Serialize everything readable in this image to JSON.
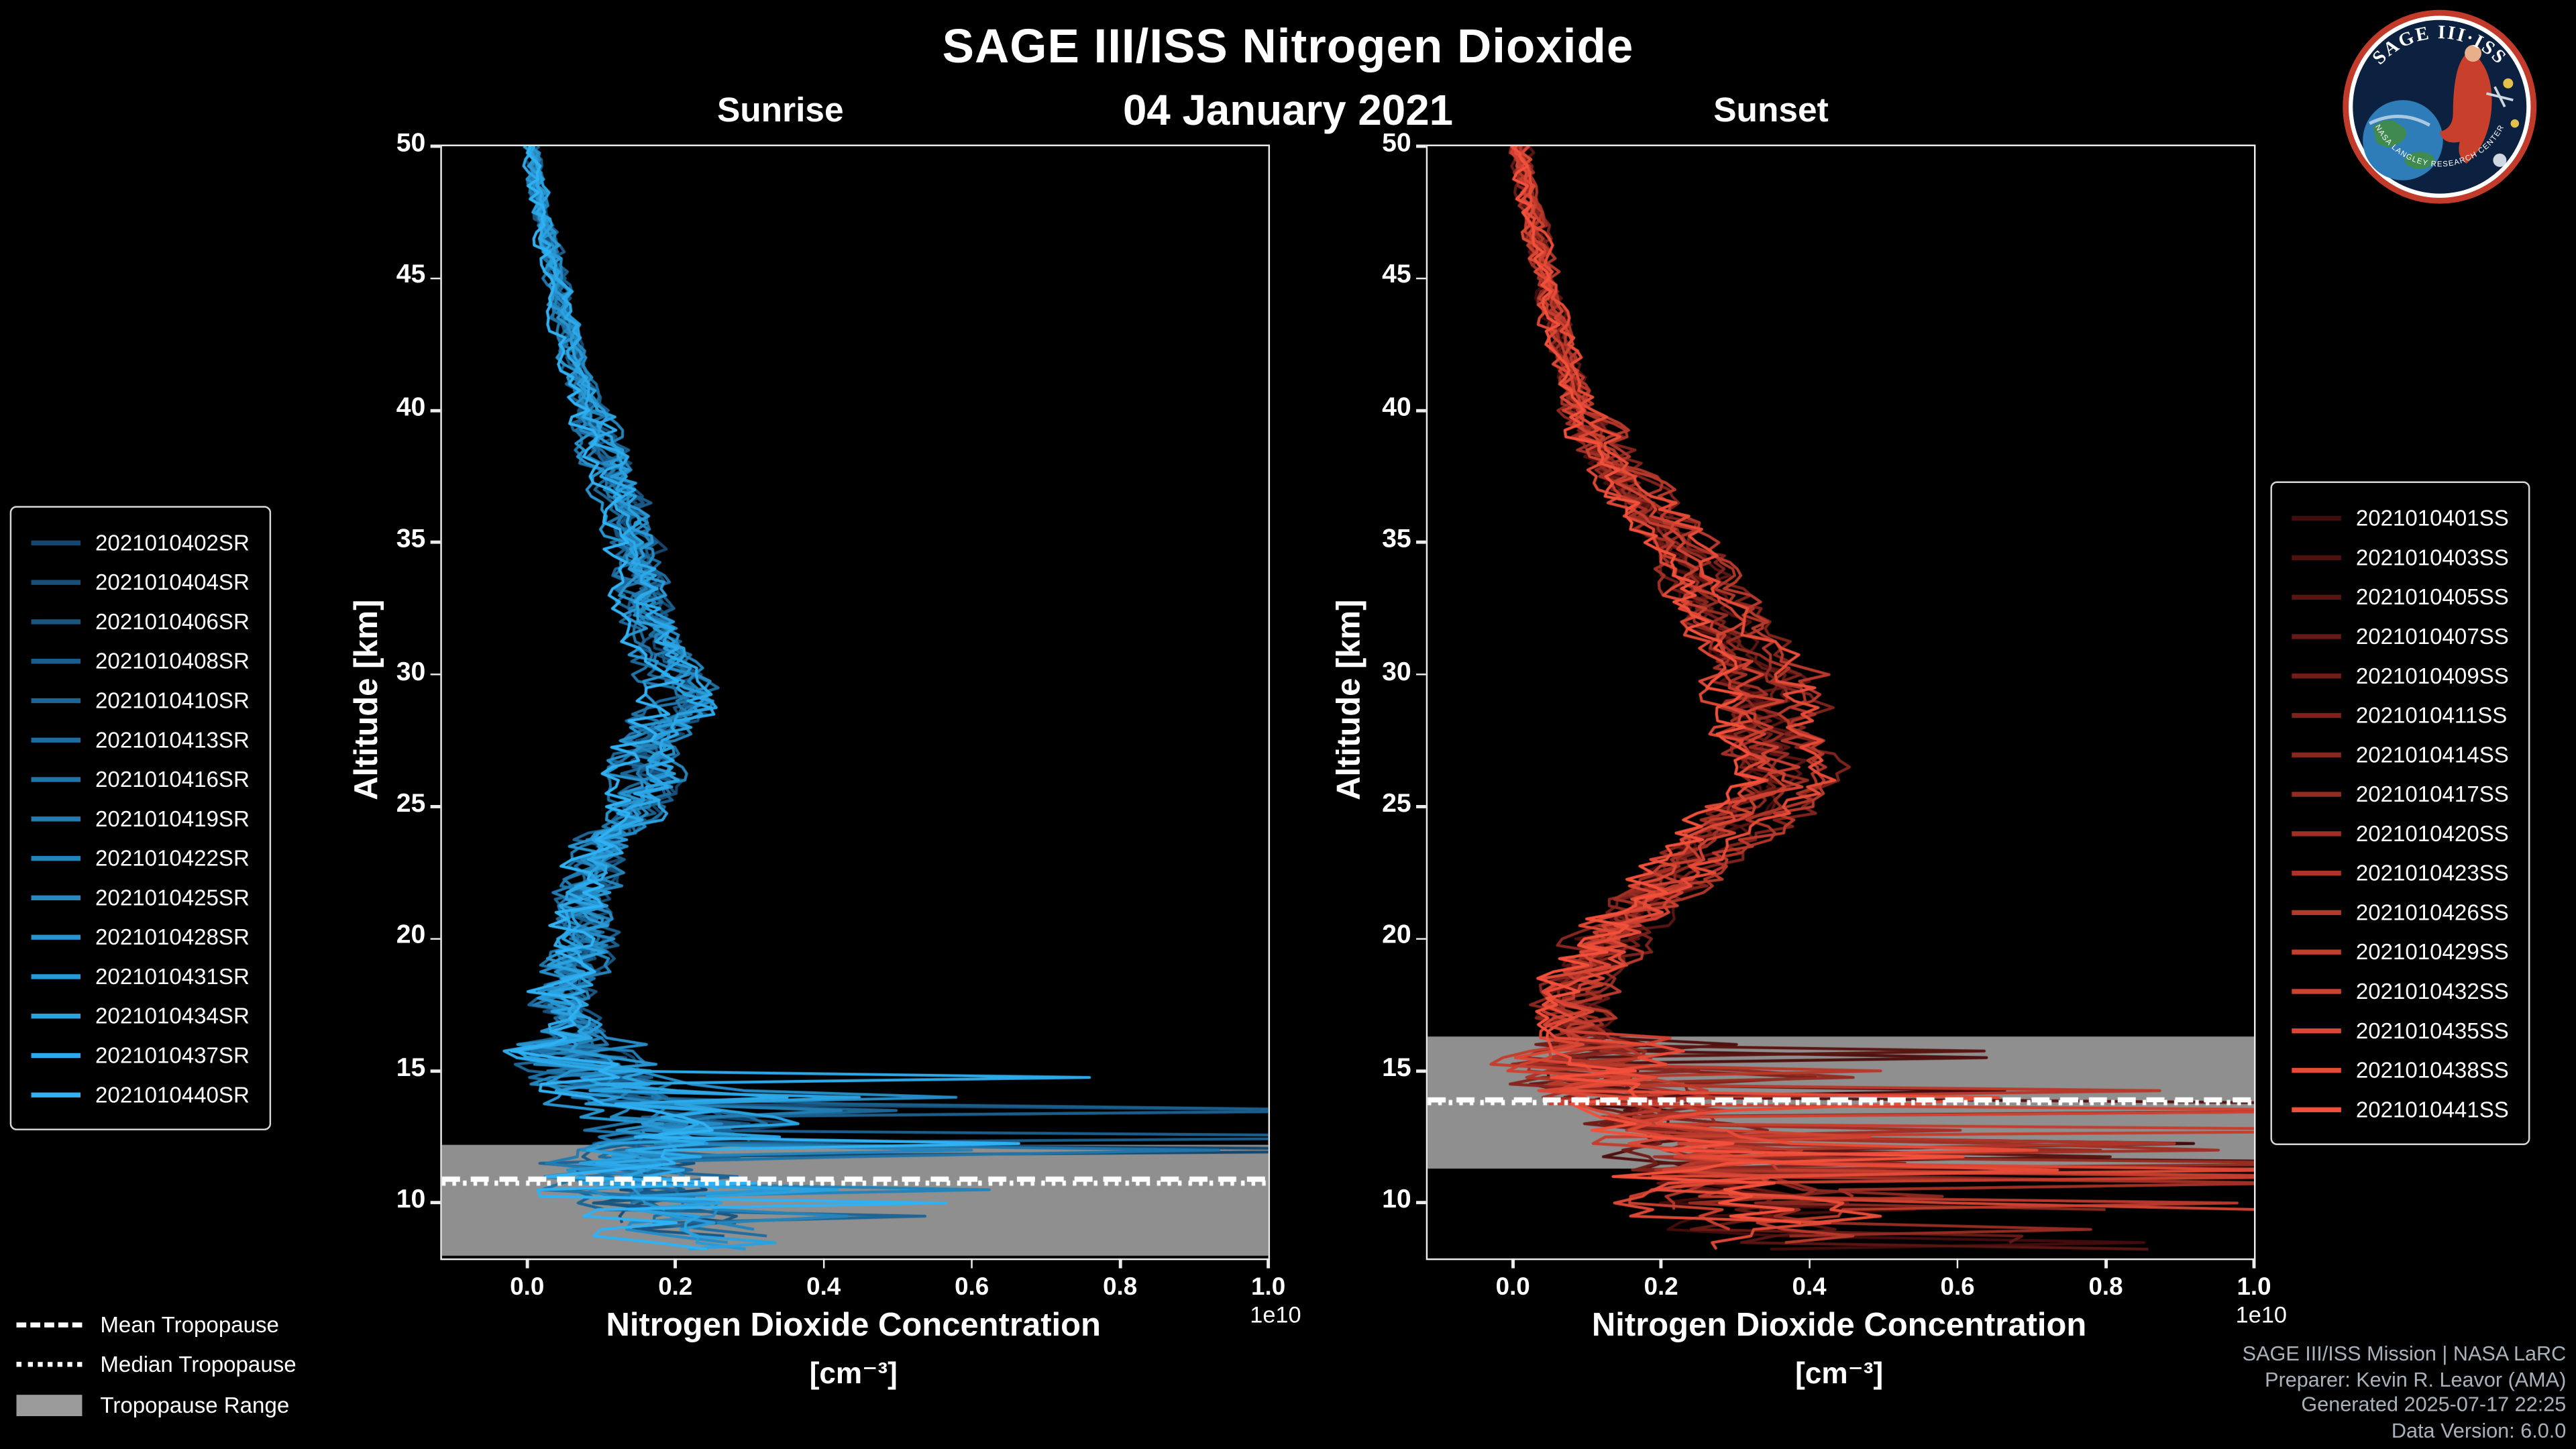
{
  "header": {
    "title": "SAGE III/ISS Nitrogen Dioxide",
    "date": "04 January 2021",
    "sunrise_label": "Sunrise",
    "sunset_label": "Sunset"
  },
  "logo": {
    "text_top": "SAGE III·ISS",
    "text_bottom": "NASA LANGLEY RESEARCH CENTER"
  },
  "axes": {
    "xlabel": "Nitrogen Dioxide Concentration",
    "xunit": "[cm⁻³]",
    "offset_label": "1e10",
    "ylabel": "Altitude [km]",
    "xticks": [
      "0.0",
      "0.2",
      "0.4",
      "0.6",
      "0.8",
      "1.0"
    ],
    "yticks": [
      10,
      15,
      20,
      25,
      30,
      35,
      40,
      45,
      50
    ],
    "xlim": [
      -0.115,
      1.0
    ],
    "ylim": [
      7.9,
      50
    ]
  },
  "tropopause_legend": {
    "mean": "Mean Tropopause",
    "median": "Median Tropopause",
    "range": "Tropopause Range",
    "range_color": "#9b9b9b"
  },
  "credits": [
    "SAGE III/ISS Mission | NASA LaRC",
    "Preparer: Kevin R. Leavor (AMA)",
    "Generated 2025-07-17 22:25",
    "Data Version: 6.0.0"
  ],
  "chart_data": {
    "type": "line",
    "title": "SAGE III/ISS Nitrogen Dioxide, 04 January 2021",
    "xlabel": "Nitrogen Dioxide Concentration [cm⁻³]",
    "ylabel": "Altitude [km]",
    "x_scale_factor": "1e10",
    "xlim": [
      -0.115,
      1.0
    ],
    "ylim": [
      7.9,
      50
    ],
    "panels": [
      {
        "label": "Sunrise",
        "color_start": "#15476e",
        "color_end": "#2fb1f3",
        "series_names": [
          "2021010402SR",
          "2021010404SR",
          "2021010406SR",
          "2021010408SR",
          "2021010410SR",
          "2021010413SR",
          "2021010416SR",
          "2021010419SR",
          "2021010422SR",
          "2021010425SR",
          "2021010428SR",
          "2021010431SR",
          "2021010434SR",
          "2021010437SR",
          "2021010440SR"
        ],
        "mean_profile_alt_km_value_1e10": [
          [
            50,
            0.005
          ],
          [
            48,
            0.015
          ],
          [
            46,
            0.03
          ],
          [
            44,
            0.045
          ],
          [
            42,
            0.06
          ],
          [
            40,
            0.08
          ],
          [
            38,
            0.105
          ],
          [
            36,
            0.13
          ],
          [
            34,
            0.145
          ],
          [
            32,
            0.155
          ],
          [
            30,
            0.19
          ],
          [
            29,
            0.21
          ],
          [
            28,
            0.17
          ],
          [
            27,
            0.15
          ],
          [
            26,
            0.16
          ],
          [
            25,
            0.14
          ],
          [
            24,
            0.11
          ],
          [
            23,
            0.09
          ],
          [
            22,
            0.08
          ],
          [
            21,
            0.07
          ],
          [
            20,
            0.075
          ],
          [
            19,
            0.06
          ],
          [
            18,
            0.05
          ],
          [
            17,
            0.05
          ],
          [
            16,
            0.06
          ],
          [
            15,
            0.08
          ],
          [
            14,
            0.12
          ],
          [
            13.5,
            0.18
          ],
          [
            13,
            0.22
          ],
          [
            12.5,
            0.18
          ],
          [
            12,
            0.15
          ],
          [
            11,
            0.12
          ],
          [
            10,
            0.15
          ],
          [
            9,
            0.2
          ],
          [
            8,
            0.25
          ]
        ],
        "tropopause": {
          "range_km": [
            8.0,
            12.2
          ],
          "mean_km": 10.9,
          "median_km": 10.75
        },
        "spikes": {
          "below_km": 15.0,
          "prob": 0.1,
          "amp": 0.75,
          "streak_below_km": 13.8,
          "streak_prob": 0.025
        },
        "noise_scale": 1.0
      },
      {
        "label": "Sunset",
        "color_start": "#420c0c",
        "color_end": "#f2503b",
        "series_names": [
          "2021010401SS",
          "2021010403SS",
          "2021010405SS",
          "2021010407SS",
          "2021010409SS",
          "2021010411SS",
          "2021010414SS",
          "2021010417SS",
          "2021010420SS",
          "2021010423SS",
          "2021010426SS",
          "2021010429SS",
          "2021010432SS",
          "2021010435SS",
          "2021010438SS",
          "2021010441SS"
        ],
        "mean_profile_alt_km_value_1e10": [
          [
            50,
            0.01
          ],
          [
            48,
            0.02
          ],
          [
            46,
            0.035
          ],
          [
            44,
            0.05
          ],
          [
            42,
            0.07
          ],
          [
            40,
            0.09
          ],
          [
            39,
            0.11
          ],
          [
            38,
            0.13
          ],
          [
            37,
            0.16
          ],
          [
            36,
            0.19
          ],
          [
            35,
            0.22
          ],
          [
            34,
            0.24
          ],
          [
            33,
            0.26
          ],
          [
            32,
            0.28
          ],
          [
            31,
            0.3
          ],
          [
            30,
            0.33
          ],
          [
            29,
            0.34
          ],
          [
            28,
            0.33
          ],
          [
            27,
            0.35
          ],
          [
            26,
            0.38
          ],
          [
            25,
            0.33
          ],
          [
            24,
            0.28
          ],
          [
            23,
            0.24
          ],
          [
            22,
            0.2
          ],
          [
            21,
            0.17
          ],
          [
            20,
            0.13
          ],
          [
            19,
            0.1
          ],
          [
            18,
            0.08
          ],
          [
            17,
            0.08
          ],
          [
            16,
            0.09
          ],
          [
            15,
            0.1
          ],
          [
            14,
            0.14
          ],
          [
            13,
            0.2
          ],
          [
            12,
            0.25
          ],
          [
            11,
            0.25
          ],
          [
            10,
            0.3
          ],
          [
            9,
            0.35
          ],
          [
            8,
            0.4
          ]
        ],
        "tropopause": {
          "range_km": [
            11.3,
            16.3
          ],
          "mean_km": 13.9,
          "median_km": 13.8
        },
        "spikes": {
          "below_km": 16.3,
          "prob": 0.13,
          "amp": 0.9,
          "streak_below_km": 14.8,
          "streak_prob": 0.04
        },
        "noise_scale": 1.1
      }
    ]
  }
}
